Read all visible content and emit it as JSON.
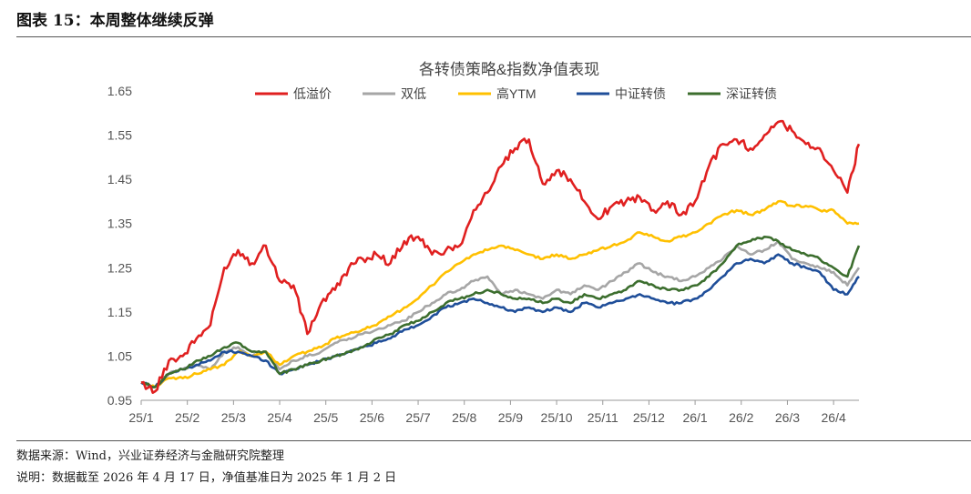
{
  "figure": {
    "label": "图表 15：本周整体继续反弹",
    "source": "数据来源：Wind，兴业证券经济与金融研究院整理",
    "note": "说明：数据截至 2026 年 4 月 17 日，净值基准日为 2025 年 1 月 2 日"
  },
  "chart_data": {
    "type": "line",
    "title": "各转债策略&指数净值表现",
    "xlabel": "",
    "ylabel": "",
    "ylim": [
      0.95,
      1.65
    ],
    "yticks": [
      "0.95",
      "1.05",
      "1.15",
      "1.25",
      "1.35",
      "1.45",
      "1.55",
      "1.65"
    ],
    "categories": [
      "25/1",
      "25/2",
      "25/3",
      "25/4",
      "25/5",
      "25/6",
      "25/7",
      "25/8",
      "25/9",
      "25/10",
      "25/11",
      "25/12",
      "26/1",
      "26/2",
      "26/3",
      "26/4"
    ],
    "x": [
      0,
      0.3,
      0.6,
      0.9,
      1.2,
      1.5,
      1.8,
      2.1,
      2.4,
      2.7,
      3.0,
      3.3,
      3.6,
      3.9,
      4.2,
      4.5,
      4.8,
      5.1,
      5.4,
      5.7,
      6.0,
      6.3,
      6.6,
      6.9,
      7.2,
      7.5,
      7.8,
      8.1,
      8.4,
      8.7,
      9.0,
      9.3,
      9.6,
      9.9,
      10.2,
      10.5,
      10.8,
      11.1,
      11.4,
      11.7,
      12.0,
      12.3,
      12.6,
      12.9,
      13.2,
      13.5,
      13.8,
      14.1,
      14.4,
      14.7,
      15.0,
      15.3,
      15.55
    ],
    "series": [
      {
        "name": "低溢价",
        "color": "#e02020",
        "values": [
          0.99,
          0.97,
          1.04,
          1.05,
          1.09,
          1.12,
          1.25,
          1.29,
          1.26,
          1.3,
          1.22,
          1.21,
          1.1,
          1.17,
          1.2,
          1.25,
          1.27,
          1.28,
          1.26,
          1.31,
          1.32,
          1.28,
          1.29,
          1.3,
          1.38,
          1.42,
          1.48,
          1.52,
          1.54,
          1.44,
          1.47,
          1.45,
          1.4,
          1.36,
          1.39,
          1.4,
          1.41,
          1.38,
          1.4,
          1.37,
          1.4,
          1.48,
          1.53,
          1.54,
          1.52,
          1.55,
          1.58,
          1.56,
          1.53,
          1.52,
          1.47,
          1.42,
          1.53
        ]
      },
      {
        "name": "双低",
        "color": "#a6a6a6",
        "values": [
          0.99,
          0.98,
          1.01,
          1.02,
          1.03,
          1.02,
          1.06,
          1.07,
          1.05,
          1.06,
          1.02,
          1.04,
          1.05,
          1.06,
          1.08,
          1.09,
          1.1,
          1.11,
          1.12,
          1.13,
          1.15,
          1.17,
          1.19,
          1.2,
          1.22,
          1.23,
          1.19,
          1.2,
          1.19,
          1.18,
          1.2,
          1.19,
          1.21,
          1.2,
          1.22,
          1.24,
          1.26,
          1.24,
          1.23,
          1.22,
          1.23,
          1.25,
          1.27,
          1.3,
          1.28,
          1.29,
          1.31,
          1.27,
          1.26,
          1.25,
          1.24,
          1.21,
          1.25
        ]
      },
      {
        "name": "高YTM",
        "color": "#ffc000",
        "values": [
          0.99,
          0.98,
          1.0,
          1.0,
          1.01,
          1.02,
          1.03,
          1.06,
          1.05,
          1.06,
          1.03,
          1.05,
          1.06,
          1.07,
          1.09,
          1.1,
          1.11,
          1.12,
          1.14,
          1.16,
          1.18,
          1.21,
          1.24,
          1.26,
          1.28,
          1.29,
          1.3,
          1.29,
          1.28,
          1.27,
          1.28,
          1.27,
          1.28,
          1.29,
          1.3,
          1.31,
          1.33,
          1.32,
          1.31,
          1.32,
          1.33,
          1.35,
          1.37,
          1.38,
          1.37,
          1.38,
          1.4,
          1.39,
          1.39,
          1.38,
          1.38,
          1.35,
          1.35
        ]
      },
      {
        "name": "中证转债",
        "color": "#1f4e99",
        "values": [
          0.99,
          0.98,
          1.01,
          1.02,
          1.03,
          1.04,
          1.06,
          1.06,
          1.05,
          1.04,
          1.01,
          1.02,
          1.03,
          1.04,
          1.05,
          1.06,
          1.07,
          1.08,
          1.09,
          1.11,
          1.12,
          1.14,
          1.16,
          1.17,
          1.18,
          1.17,
          1.16,
          1.15,
          1.16,
          1.15,
          1.16,
          1.15,
          1.17,
          1.16,
          1.17,
          1.18,
          1.19,
          1.18,
          1.17,
          1.17,
          1.18,
          1.2,
          1.23,
          1.26,
          1.27,
          1.26,
          1.28,
          1.26,
          1.25,
          1.24,
          1.2,
          1.19,
          1.23
        ]
      },
      {
        "name": "深证转债",
        "color": "#3c6e2e",
        "values": [
          0.99,
          0.98,
          1.01,
          1.02,
          1.04,
          1.05,
          1.07,
          1.08,
          1.06,
          1.06,
          1.01,
          1.02,
          1.03,
          1.04,
          1.05,
          1.06,
          1.07,
          1.09,
          1.1,
          1.12,
          1.13,
          1.15,
          1.17,
          1.18,
          1.19,
          1.2,
          1.19,
          1.18,
          1.18,
          1.17,
          1.18,
          1.17,
          1.19,
          1.18,
          1.19,
          1.2,
          1.22,
          1.21,
          1.2,
          1.2,
          1.21,
          1.23,
          1.26,
          1.3,
          1.31,
          1.32,
          1.31,
          1.29,
          1.28,
          1.27,
          1.25,
          1.23,
          1.3
        ]
      }
    ],
    "legend_position": "top"
  }
}
